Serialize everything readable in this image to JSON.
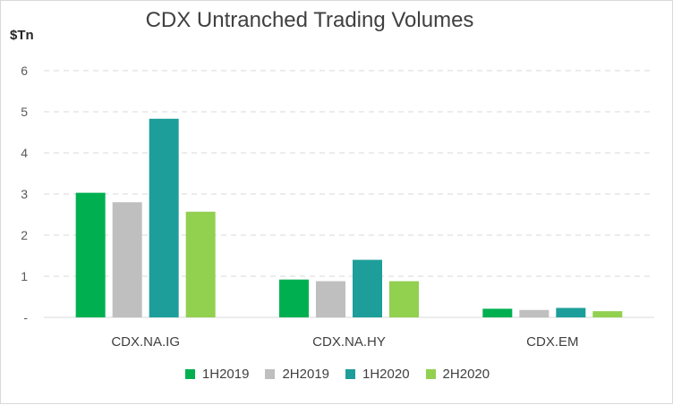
{
  "chart_data": {
    "type": "bar",
    "title": "CDX Untranched Trading Volumes",
    "ylabel": "$Tn",
    "categories": [
      "CDX.NA.IG",
      "CDX.NA.HY",
      "CDX.EM"
    ],
    "ylim": [
      0,
      6
    ],
    "yticks": [
      "-",
      "1",
      "2",
      "3",
      "4",
      "5",
      "6"
    ],
    "grid": true,
    "legend_position": "bottom",
    "series": [
      {
        "name": "1H2019",
        "color": "#00b050",
        "values": [
          3.03,
          0.92,
          0.21
        ]
      },
      {
        "name": "2H2019",
        "color": "#bfbfbf",
        "values": [
          2.8,
          0.88,
          0.18
        ]
      },
      {
        "name": "1H2020",
        "color": "#1d9e9a",
        "values": [
          4.83,
          1.4,
          0.23
        ]
      },
      {
        "name": "2H2020",
        "color": "#92d050",
        "values": [
          2.57,
          0.88,
          0.15
        ]
      }
    ]
  }
}
